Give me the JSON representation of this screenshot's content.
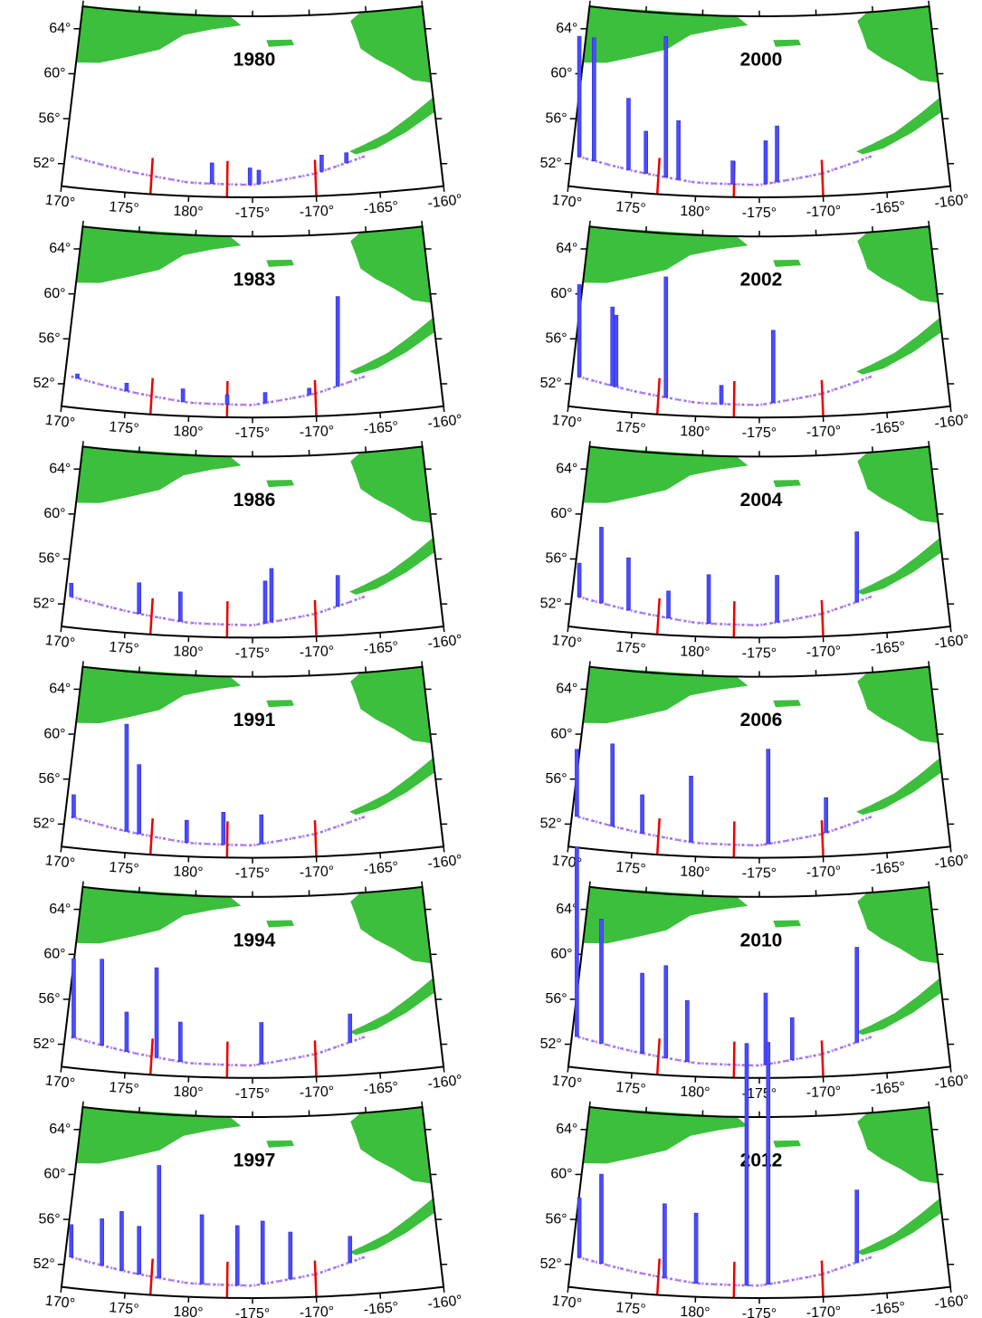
{
  "lat_ticks": [
    {
      "value": 64,
      "label": "64°"
    },
    {
      "value": 60,
      "label": "60°"
    },
    {
      "value": 56,
      "label": "56°"
    },
    {
      "value": 52,
      "label": "52°"
    }
  ],
  "lon_ticks": [
    {
      "value": 170,
      "label": "170°"
    },
    {
      "value": 175,
      "label": "175°"
    },
    {
      "value": 180,
      "label": "180°"
    },
    {
      "value": -175,
      "label": "-175°"
    },
    {
      "value": -170,
      "label": "-170°"
    },
    {
      "value": -165,
      "label": "-165°"
    },
    {
      "value": -160,
      "label": "-160°"
    }
  ],
  "panels": [
    {
      "title": "1980",
      "bar_lon": [
        181.8,
        184.8,
        185.5,
        190.5,
        192.5
      ],
      "bar_top": [
        53,
        52.6,
        52.4,
        53.6,
        53.7
      ]
    },
    {
      "title": "2000",
      "bar_lon": [
        170.6,
        171.8,
        174.6,
        176,
        177.6,
        178.6,
        182.9,
        185.5,
        186.4
      ],
      "bar_top": [
        63.4,
        63.4,
        58.3,
        55.5,
        64,
        56.6,
        53.2,
        55,
        56.3
      ]
    },
    {
      "title": "1983",
      "bar_lon": [
        171,
        175,
        179.5,
        183,
        186,
        189.5,
        191.8
      ],
      "bar_top": [
        53,
        52.6,
        52.4,
        52,
        52.2,
        52.5,
        60.5
      ]
    },
    {
      "title": "2002",
      "bar_lon": [
        170.6,
        173.3,
        173.6,
        177.6,
        182,
        186.1
      ],
      "bar_top": [
        60.9,
        59.2,
        58.5,
        62.2,
        52.8,
        57.7
      ]
    },
    {
      "title": "1986",
      "bar_lon": [
        170.5,
        176,
        179.3,
        186,
        186.5,
        191.8
      ],
      "bar_top": [
        53.9,
        54.5,
        53.9,
        55,
        56.1,
        55.3
      ]
    },
    {
      "title": "2004",
      "bar_lon": [
        170.6,
        172.4,
        174.6,
        177.8,
        181,
        186.4,
        192.8
      ],
      "bar_top": [
        55.7,
        59.1,
        56.6,
        53.9,
        55.5,
        55.5,
        59.1
      ]
    },
    {
      "title": "1991",
      "bar_lon": [
        170.7,
        175,
        176,
        179.8,
        182.7,
        185.7
      ],
      "bar_top": [
        54.7,
        61.4,
        57.9,
        53.2,
        54,
        53.8
      ]
    },
    {
      "title": "2006",
      "bar_lon": [
        170.4,
        173.3,
        175.7,
        179.6,
        185.7,
        190.3
      ],
      "bar_top": [
        58.7,
        59.5,
        55.2,
        57.1,
        59.6,
        55.2
      ]
    },
    {
      "title": "1994",
      "bar_lon": [
        170.7,
        173,
        175,
        177.4,
        179.3,
        185.7,
        192.8
      ],
      "bar_top": [
        59.7,
        59.9,
        55.4,
        59.5,
        54.8,
        54.9,
        55.4
      ]
    },
    {
      "title": "2010",
      "bar_lon": [
        170.4,
        172.4,
        175.7,
        177.6,
        179.3,
        185.5,
        187.6,
        192.8
      ],
      "bar_top": [
        69.6,
        63.4,
        58.9,
        59.7,
        56.7,
        57.5,
        55.3,
        61.3
      ]
    },
    {
      "title": "1997",
      "bar_lon": [
        170.5,
        173,
        174.6,
        176,
        177.6,
        181,
        183.8,
        185.8,
        188,
        192.8
      ],
      "bar_top": [
        55.6,
        56.4,
        57.2,
        56,
        61.5,
        57.3,
        56.4,
        56.8,
        55.8,
        55.2
      ]
    },
    {
      "title": "2012",
      "bar_lon": [
        170.6,
        172.4,
        177.5,
        180,
        184,
        185.7,
        192.8
      ],
      "bar_top": [
        58,
        60.3,
        58.1,
        57.4,
        72.5,
        72.6,
        59.3
      ]
    }
  ]
}
